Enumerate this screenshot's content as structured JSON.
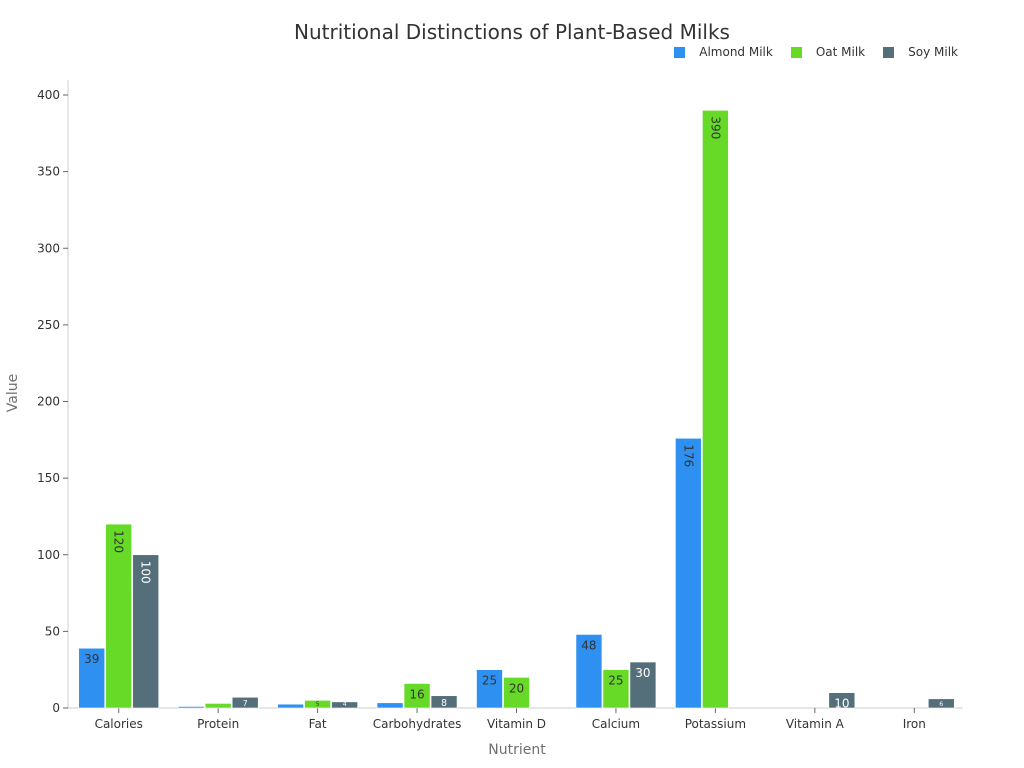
{
  "chart_data": {
    "type": "bar",
    "title": "Nutritional Distinctions of Plant-Based Milks",
    "xlabel": "Nutrient",
    "ylabel": "Value",
    "ylim": [
      0,
      410
    ],
    "yticks": [
      0,
      50,
      100,
      150,
      200,
      250,
      300,
      350,
      400
    ],
    "grid": false,
    "legend_position": "top-right",
    "categories": [
      "Calories",
      "Protein",
      "Fat",
      "Carbohydrates",
      "Vitamin D",
      "Calcium",
      "Potassium",
      "Vitamin A",
      "Iron"
    ],
    "series": [
      {
        "name": "Almond Milk",
        "color": "#2E91F2",
        "label_color": "#333333",
        "values": [
          39,
          1,
          2.5,
          3.4,
          25,
          48,
          176,
          0,
          0
        ]
      },
      {
        "name": "Oat Milk",
        "color": "#66DA26",
        "label_color": "#333333",
        "values": [
          120,
          3,
          5,
          16,
          20,
          25,
          390,
          0,
          0
        ]
      },
      {
        "name": "Soy Milk",
        "color": "#546E7A",
        "label_color": "#ffffff",
        "values": [
          100,
          7,
          4,
          8,
          0,
          30,
          0,
          10,
          6
        ]
      }
    ]
  },
  "header": {
    "title": "Nutritional Distinctions of Plant-Based Milks"
  },
  "legend": {
    "items": [
      {
        "label": "Almond Milk",
        "color": "#2E91F2"
      },
      {
        "label": "Oat Milk",
        "color": "#66DA26"
      },
      {
        "label": "Soy Milk",
        "color": "#546E7A"
      }
    ]
  },
  "axes": {
    "x_title": "Nutrient",
    "y_title": "Value"
  }
}
